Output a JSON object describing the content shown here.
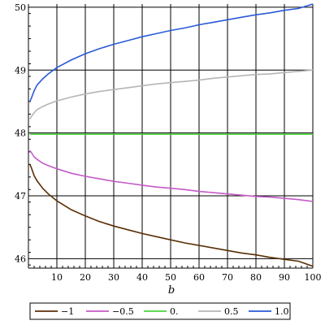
{
  "chart_data": {
    "type": "line",
    "title": "",
    "xlabel": "b",
    "ylabel": "",
    "xlim": [
      0,
      100
    ],
    "ylim": [
      45.85,
      50.05
    ],
    "grid": true,
    "legend_position": "bottom",
    "x_ticks": [
      10,
      20,
      30,
      40,
      50,
      60,
      70,
      80,
      90,
      100
    ],
    "x_tick_labels": [
      "10",
      "20",
      "30",
      "40",
      "50",
      "60",
      "70",
      "80",
      "90",
      "100"
    ],
    "y_ticks": [
      46,
      47,
      48,
      49,
      50
    ],
    "y_tick_labels": [
      "46",
      "47",
      "48",
      "49",
      "50"
    ],
    "x": [
      0.5,
      1,
      2,
      3,
      5,
      7,
      10,
      15,
      20,
      25,
      30,
      35,
      40,
      45,
      50,
      55,
      60,
      65,
      70,
      75,
      80,
      85,
      90,
      95,
      100
    ],
    "series": [
      {
        "name": "−1",
        "color": "#5a2f07",
        "values": [
          47.5,
          47.45,
          47.32,
          47.24,
          47.12,
          47.03,
          46.92,
          46.78,
          46.68,
          46.59,
          46.52,
          46.46,
          46.4,
          46.35,
          46.3,
          46.25,
          46.21,
          46.17,
          46.13,
          46.09,
          46.06,
          46.02,
          45.99,
          45.96,
          45.88
        ]
      },
      {
        "name": "−0.5",
        "color": "#c45ac8",
        "values": [
          47.72,
          47.69,
          47.62,
          47.58,
          47.52,
          47.48,
          47.43,
          47.36,
          47.31,
          47.27,
          47.23,
          47.2,
          47.17,
          47.14,
          47.12,
          47.1,
          47.07,
          47.05,
          47.03,
          47.01,
          46.99,
          46.98,
          46.96,
          46.94,
          46.91
        ]
      },
      {
        "name": "0.",
        "color": "#49d43d",
        "values": [
          47.98,
          47.98,
          47.98,
          47.98,
          47.98,
          47.98,
          47.98,
          47.98,
          47.98,
          47.98,
          47.98,
          47.98,
          47.98,
          47.98,
          47.98,
          47.98,
          47.98,
          47.98,
          47.98,
          47.98,
          47.98,
          47.98,
          47.98,
          47.98,
          47.98
        ]
      },
      {
        "name": "0.5",
        "color": "#b5b5b5",
        "values": [
          48.22,
          48.26,
          48.32,
          48.37,
          48.42,
          48.46,
          48.51,
          48.57,
          48.62,
          48.66,
          48.69,
          48.72,
          48.75,
          48.78,
          48.8,
          48.82,
          48.84,
          48.87,
          48.89,
          48.91,
          48.93,
          48.94,
          48.96,
          48.98,
          49.0
        ]
      },
      {
        "name": "1.0",
        "color": "#2a5ad8",
        "values": [
          48.5,
          48.55,
          48.67,
          48.76,
          48.86,
          48.94,
          49.04,
          49.16,
          49.26,
          49.34,
          49.41,
          49.47,
          49.53,
          49.58,
          49.63,
          49.67,
          49.72,
          49.76,
          49.8,
          49.84,
          49.88,
          49.91,
          49.95,
          49.98,
          50.05
        ]
      }
    ]
  }
}
